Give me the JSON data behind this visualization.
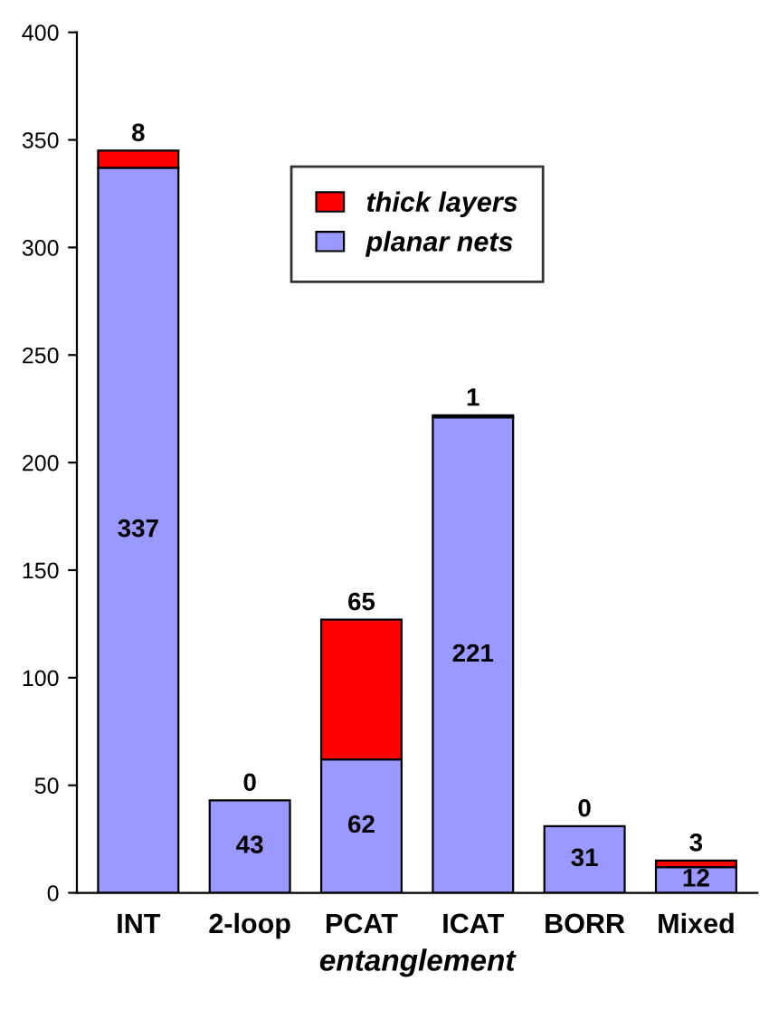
{
  "chart_data": {
    "type": "bar",
    "stacked": true,
    "xlabel": "entanglement",
    "categories": [
      "INT",
      "2-loop",
      "PCAT",
      "ICAT",
      "BORR",
      "Mixed"
    ],
    "series": [
      {
        "name": "planar nets",
        "color": "#9999ff",
        "values": [
          337,
          43,
          62,
          221,
          31,
          12
        ]
      },
      {
        "name": "thick layers",
        "color": "#ff0000",
        "values": [
          8,
          0,
          65,
          1,
          0,
          3
        ]
      }
    ],
    "ylim": [
      0,
      400
    ],
    "yticks": [
      0,
      50,
      100,
      150,
      200,
      250,
      300,
      350,
      400
    ],
    "data_labels": true,
    "legend": "top",
    "grid": false
  }
}
